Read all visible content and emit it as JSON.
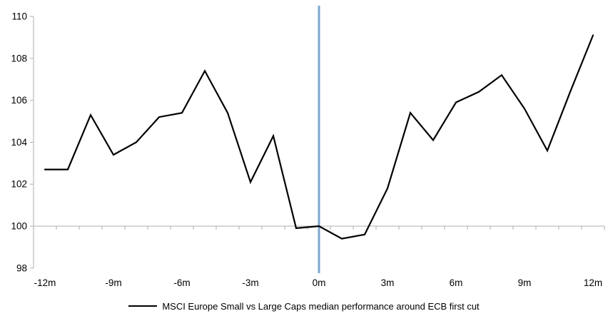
{
  "chart_data": {
    "type": "line",
    "title": "",
    "xlabel": "",
    "ylabel": "",
    "x_unit": "months relative to ECB first cut",
    "x": [
      -12,
      -11,
      -10,
      -9,
      -8,
      -7,
      -6,
      -5,
      -4,
      -3,
      -2,
      -1,
      0,
      1,
      2,
      3,
      4,
      5,
      6,
      7,
      8,
      9,
      10,
      11,
      12
    ],
    "series": [
      {
        "name": "MSCI Europe Small vs Large Caps median performance around ECB first cut",
        "color": "#000000",
        "values": [
          102.7,
          102.7,
          105.3,
          103.4,
          104.0,
          105.2,
          105.4,
          107.4,
          105.4,
          102.1,
          104.3,
          99.9,
          100.0,
          99.4,
          99.6,
          101.8,
          105.4,
          104.1,
          105.9,
          106.4,
          107.2,
          105.6,
          103.6,
          106.4,
          109.1
        ]
      }
    ],
    "ylim": [
      98,
      110
    ],
    "y_ticks": [
      98,
      100,
      102,
      104,
      106,
      108,
      110
    ],
    "y_tick_labels": [
      "98",
      "100",
      "102",
      "104",
      "106",
      "108",
      "110"
    ],
    "x_tick_months": [
      -12,
      -9,
      -6,
      -3,
      0,
      3,
      6,
      9,
      12
    ],
    "x_tick_labels": [
      "-12m",
      "-9m",
      "-6m",
      "-3m",
      "0m",
      "3m",
      "6m",
      "9m",
      "12m"
    ],
    "category_axis_at": 100,
    "event_line": {
      "x_month": 0,
      "color": "#7EA6CE"
    },
    "axis_color": "#BFBFBF",
    "grid": "off",
    "legend_position": "bottom-center"
  }
}
